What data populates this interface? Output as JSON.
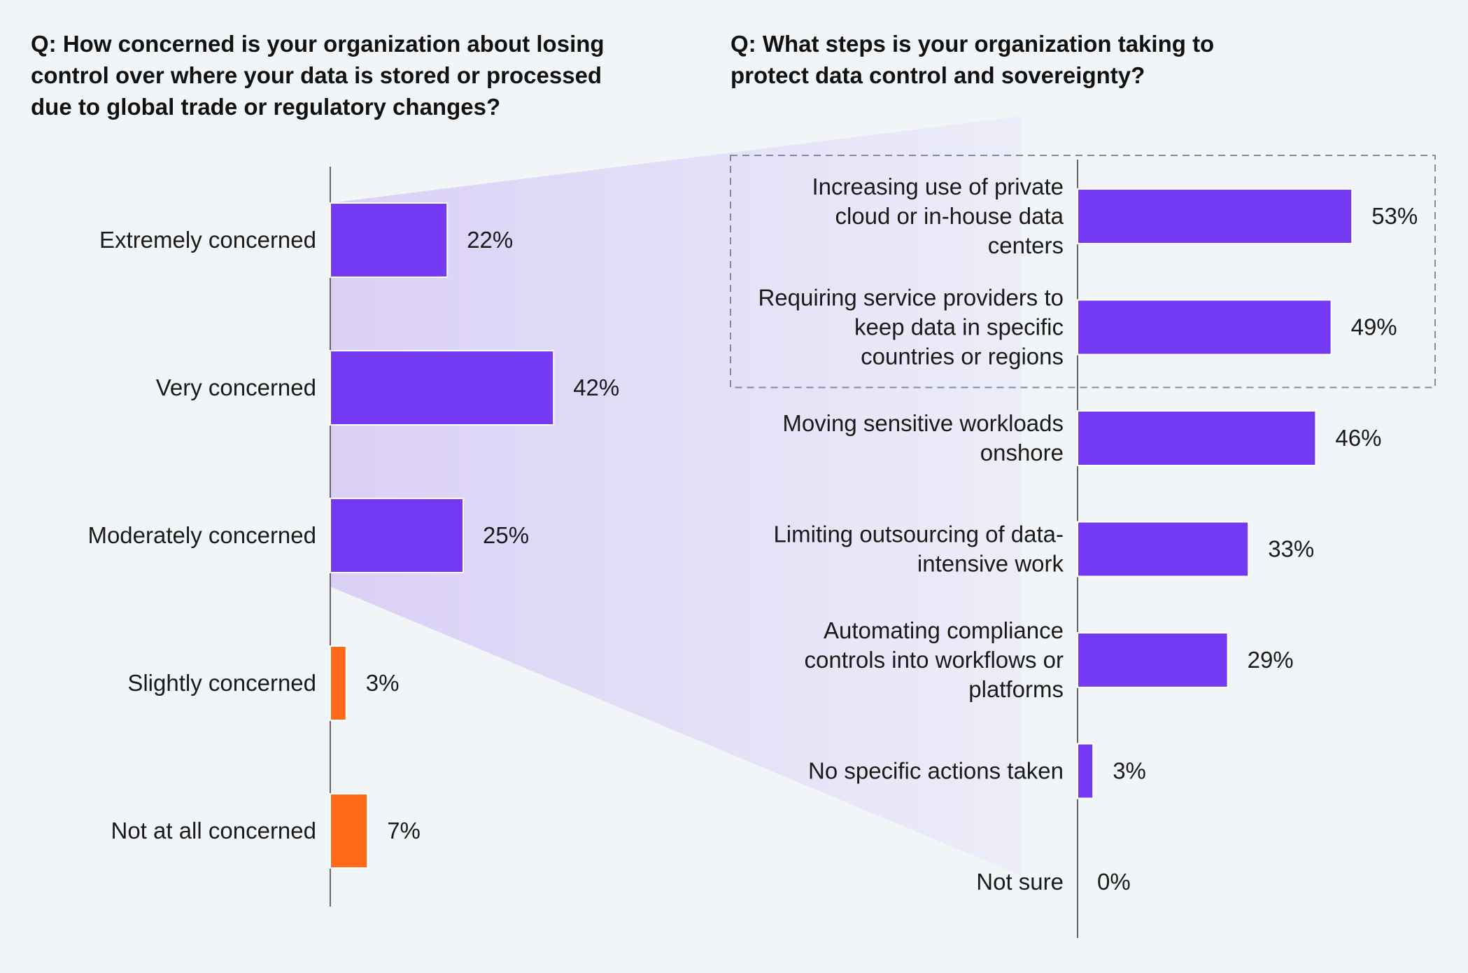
{
  "chart_data": [
    {
      "type": "bar",
      "orientation": "horizontal",
      "title": "Q: How concerned is your organization about losing control over where your data is stored or processed due to global trade or regulatory changes?",
      "categories": [
        "Extremely concerned",
        "Very concerned",
        "Moderately concerned",
        "Slightly concerned",
        "Not at all concerned"
      ],
      "values": [
        22,
        42,
        25,
        3,
        7
      ],
      "value_labels": [
        "22%",
        "42%",
        "25%",
        "3%",
        "7%"
      ],
      "unit": "%",
      "bar_colors": [
        "#7439f2",
        "#7439f2",
        "#7439f2",
        "#ff6a1a",
        "#ff6a1a"
      ],
      "xlim": [
        0,
        100
      ]
    },
    {
      "type": "bar",
      "orientation": "horizontal",
      "title": "Q: What steps is your organization taking to protect data control and sovereignty?",
      "categories": [
        "Increasing use of private cloud or in-house data centers",
        "Requiring service providers to keep data in specific countries or regions",
        "Moving sensitive workloads onshore",
        "Limiting outsourcing of data-intensive work",
        "Automating compliance controls into workflows or platforms",
        "No specific actions taken",
        "Not sure"
      ],
      "category_lines": [
        [
          "Increasing use of private",
          "cloud or in-house data",
          "centers"
        ],
        [
          "Requiring service providers to",
          "keep data in specific",
          "countries or regions"
        ],
        [
          "Moving sensitive workloads",
          "onshore"
        ],
        [
          "Limiting outsourcing of data-",
          "intensive work"
        ],
        [
          "Automating compliance",
          "controls into workflows or",
          "platforms"
        ],
        [
          "No specific actions taken"
        ],
        [
          "Not sure"
        ]
      ],
      "values": [
        53,
        49,
        46,
        33,
        29,
        3,
        0
      ],
      "value_labels": [
        "53%",
        "49%",
        "46%",
        "33%",
        "29%",
        "3%",
        "0%"
      ],
      "unit": "%",
      "bar_color": "#7439f2",
      "highlighted_categories": [
        0,
        1
      ],
      "xlim": [
        0,
        100
      ]
    }
  ],
  "colors": {
    "background": "#f2f5f8",
    "accent": "#7439f2",
    "secondary": "#ff6a1a",
    "funnel": "#c6b1f5",
    "axis": "#666666",
    "highlight_border": "#7f8aa3"
  }
}
